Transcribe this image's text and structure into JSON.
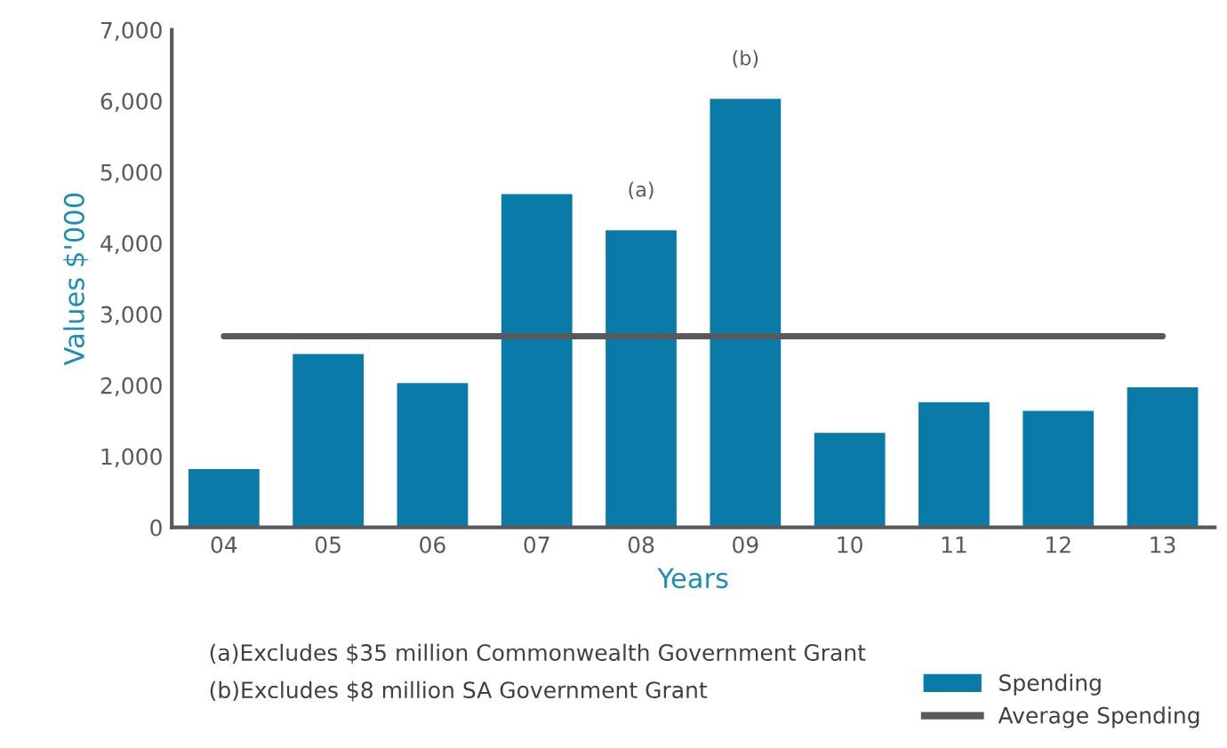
{
  "chart_data": {
    "type": "bar",
    "xlabel": "Years",
    "ylabel": "Values $'000",
    "categories": [
      "04",
      "05",
      "06",
      "07",
      "08",
      "09",
      "10",
      "11",
      "12",
      "13"
    ],
    "series": [
      {
        "name": "Spending",
        "color": "#0a7aa8",
        "values": [
          820,
          2440,
          2030,
          4690,
          4180,
          6030,
          1330,
          1760,
          1640,
          1970
        ]
      },
      {
        "name": "Average Spending",
        "type": "line",
        "color": "#595959",
        "values": [
          2690,
          2690,
          2690,
          2690,
          2690,
          2690,
          2690,
          2690,
          2690,
          2690
        ]
      }
    ],
    "ylim": [
      0,
      7000
    ],
    "yticks": [
      {
        "value": 0,
        "label": "0"
      },
      {
        "value": 1000,
        "label": "1,000"
      },
      {
        "value": 2000,
        "label": "2,000"
      },
      {
        "value": 3000,
        "label": "3,000"
      },
      {
        "value": 4000,
        "label": "4,000"
      },
      {
        "value": 5000,
        "label": "5,000"
      },
      {
        "value": 6000,
        "label": "6,000"
      },
      {
        "value": 7000,
        "label": "7,000"
      }
    ],
    "annotations": [
      {
        "text": "(a)",
        "x": "08",
        "y": 4180
      },
      {
        "text": "(b)",
        "x": "09",
        "y": 6030
      },
      "(a)Excludes $35 million Commonwealth Government Grant",
      "(b)Excludes $8 million SA Government Grant"
    ],
    "legend": "bottom right",
    "grid": false
  }
}
